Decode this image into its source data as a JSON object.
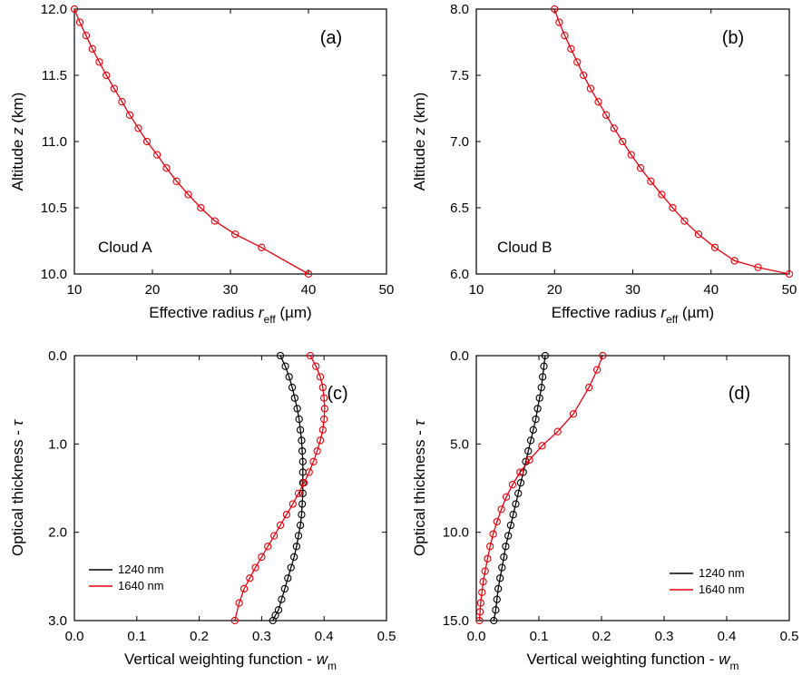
{
  "chart_data": [
    {
      "type": "line",
      "panel_label": "(a)",
      "annotation": "Cloud A",
      "xlabel": "Effective radius",
      "xlabel_sym": "r",
      "xlabel_sub": "eff",
      "xlabel_unit": "(µm)",
      "ylabel": "Altitude",
      "ylabel_sym": "z",
      "ylabel_unit": "(km)",
      "xlim": [
        10,
        50
      ],
      "ylim": [
        10,
        12
      ],
      "y_inverted": false,
      "xticks": [
        10,
        20,
        30,
        40,
        50
      ],
      "xtick_labels": [
        "10",
        "20",
        "30",
        "40",
        "50"
      ],
      "yticks": [
        10,
        10.5,
        11,
        11.5,
        12
      ],
      "ytick_labels": [
        "10.0",
        "10.5",
        "11.0",
        "11.5",
        "12.0"
      ],
      "grid": false,
      "series": [
        {
          "color": "#e8000b",
          "x": [
            10.0,
            10.7,
            11.5,
            12.3,
            13.2,
            14.1,
            15.1,
            16.1,
            17.1,
            18.2,
            19.3,
            20.6,
            21.8,
            23.1,
            24.6,
            26.2,
            28.0,
            30.6,
            34.0,
            40.0
          ],
          "y": [
            12.0,
            11.9,
            11.8,
            11.7,
            11.6,
            11.5,
            11.4,
            11.3,
            11.2,
            11.1,
            11.0,
            10.9,
            10.8,
            10.7,
            10.6,
            10.5,
            10.4,
            10.3,
            10.2,
            10.0
          ]
        }
      ]
    },
    {
      "type": "line",
      "panel_label": "(b)",
      "annotation": "Cloud B",
      "xlabel": "Effective radius",
      "xlabel_sym": "r",
      "xlabel_sub": "eff",
      "xlabel_unit": "(µm)",
      "ylabel": "Altitude",
      "ylabel_sym": "z",
      "ylabel_unit": "(km)",
      "xlim": [
        10,
        50
      ],
      "ylim": [
        6,
        8
      ],
      "y_inverted": false,
      "xticks": [
        10,
        20,
        30,
        40,
        50
      ],
      "xtick_labels": [
        "10",
        "20",
        "30",
        "40",
        "50"
      ],
      "yticks": [
        6,
        6.5,
        7,
        7.5,
        8
      ],
      "ytick_labels": [
        "6.0",
        "6.5",
        "7.0",
        "7.5",
        "8.0"
      ],
      "grid": false,
      "series": [
        {
          "color": "#e8000b",
          "x": [
            20.0,
            20.6,
            21.3,
            22.1,
            22.9,
            23.7,
            24.6,
            25.6,
            26.6,
            27.6,
            28.7,
            29.8,
            31.0,
            32.3,
            33.7,
            35.1,
            36.6,
            38.4,
            40.5,
            43.0,
            46.0,
            50.0
          ],
          "y": [
            8.0,
            7.9,
            7.8,
            7.7,
            7.6,
            7.5,
            7.4,
            7.3,
            7.2,
            7.1,
            7.0,
            6.9,
            6.8,
            6.7,
            6.6,
            6.5,
            6.4,
            6.3,
            6.2,
            6.1,
            6.05,
            6.0
          ]
        }
      ]
    },
    {
      "type": "line",
      "panel_label": "(c)",
      "xlabel": "Vertical weighting function -",
      "xlabel_sym": "w",
      "xlabel_sub": "m",
      "ylabel": "Optical thickness -",
      "ylabel_sym": "τ",
      "xlim": [
        0,
        0.5
      ],
      "ylim": [
        0,
        3
      ],
      "y_inverted": true,
      "xticks": [
        0,
        0.1,
        0.2,
        0.3,
        0.4,
        0.5
      ],
      "xtick_labels": [
        "0.0",
        "0.1",
        "0.2",
        "0.3",
        "0.4",
        "0.5"
      ],
      "yticks": [
        0,
        1,
        2,
        3
      ],
      "ytick_labels": [
        "0.0",
        "1.0",
        "2.0",
        "3.0"
      ],
      "grid": false,
      "legend": "lower-left",
      "series": [
        {
          "name": "1240 nm",
          "color": "#000000",
          "x": [
            0.33,
            0.338,
            0.344,
            0.349,
            0.353,
            0.357,
            0.36,
            0.362,
            0.364,
            0.365,
            0.366,
            0.366,
            0.366,
            0.366,
            0.365,
            0.364,
            0.362,
            0.359,
            0.356,
            0.352,
            0.347,
            0.342,
            0.337,
            0.332,
            0.327,
            0.322,
            0.318
          ],
          "y": [
            0.0,
            0.12,
            0.24,
            0.36,
            0.48,
            0.6,
            0.72,
            0.84,
            0.96,
            1.08,
            1.2,
            1.32,
            1.44,
            1.56,
            1.68,
            1.8,
            1.92,
            2.04,
            2.16,
            2.28,
            2.4,
            2.52,
            2.64,
            2.76,
            2.88,
            2.94,
            3.0
          ]
        },
        {
          "name": "1640 nm",
          "color": "#e8000b",
          "x": [
            0.378,
            0.387,
            0.394,
            0.398,
            0.4,
            0.401,
            0.4,
            0.398,
            0.394,
            0.389,
            0.383,
            0.376,
            0.368,
            0.359,
            0.35,
            0.34,
            0.33,
            0.32,
            0.31,
            0.3,
            0.29,
            0.281,
            0.272,
            0.264,
            0.257
          ],
          "y": [
            0.0,
            0.12,
            0.24,
            0.36,
            0.48,
            0.6,
            0.72,
            0.84,
            0.96,
            1.08,
            1.2,
            1.32,
            1.44,
            1.56,
            1.68,
            1.8,
            1.92,
            2.04,
            2.16,
            2.28,
            2.4,
            2.52,
            2.64,
            2.8,
            3.0
          ]
        }
      ]
    },
    {
      "type": "line",
      "panel_label": "(d)",
      "xlabel": "Vertical weighting function -",
      "xlabel_sym": "w",
      "xlabel_sub": "m",
      "ylabel": "Optical thickness -",
      "ylabel_sym": "τ",
      "xlim": [
        0,
        0.5
      ],
      "ylim": [
        0,
        15
      ],
      "y_inverted": true,
      "xticks": [
        0,
        0.1,
        0.2,
        0.3,
        0.4,
        0.5
      ],
      "xtick_labels": [
        "0.0",
        "0.1",
        "0.2",
        "0.3",
        "0.4",
        "0.5"
      ],
      "yticks": [
        0,
        5,
        10,
        15
      ],
      "ytick_labels": [
        "0.0",
        "5.0",
        "10.0",
        "15.0"
      ],
      "grid": false,
      "legend": "lower-right",
      "series": [
        {
          "name": "1240 nm",
          "color": "#000000",
          "x": [
            0.11,
            0.108,
            0.106,
            0.104,
            0.101,
            0.098,
            0.095,
            0.091,
            0.087,
            0.083,
            0.079,
            0.075,
            0.071,
            0.067,
            0.063,
            0.059,
            0.055,
            0.051,
            0.047,
            0.044,
            0.041,
            0.038,
            0.035,
            0.033,
            0.031,
            0.028
          ],
          "y": [
            0.0,
            0.6,
            1.2,
            1.8,
            2.4,
            3.0,
            3.6,
            4.2,
            4.8,
            5.4,
            6.0,
            6.6,
            7.2,
            7.8,
            8.4,
            9.0,
            9.6,
            10.2,
            10.8,
            11.4,
            12.0,
            12.6,
            13.2,
            13.8,
            14.4,
            15.0
          ]
        },
        {
          "name": "1640 nm",
          "color": "#e8000b",
          "x": [
            0.202,
            0.193,
            0.18,
            0.155,
            0.13,
            0.105,
            0.085,
            0.07,
            0.058,
            0.048,
            0.04,
            0.033,
            0.027,
            0.022,
            0.018,
            0.014,
            0.011,
            0.009,
            0.007,
            0.006,
            0.005
          ],
          "y": [
            0.0,
            0.8,
            1.8,
            3.3,
            4.3,
            5.1,
            5.9,
            6.6,
            7.3,
            8.0,
            8.7,
            9.4,
            10.1,
            10.8,
            11.5,
            12.2,
            12.8,
            13.4,
            14.0,
            14.5,
            15.0
          ]
        }
      ]
    }
  ]
}
